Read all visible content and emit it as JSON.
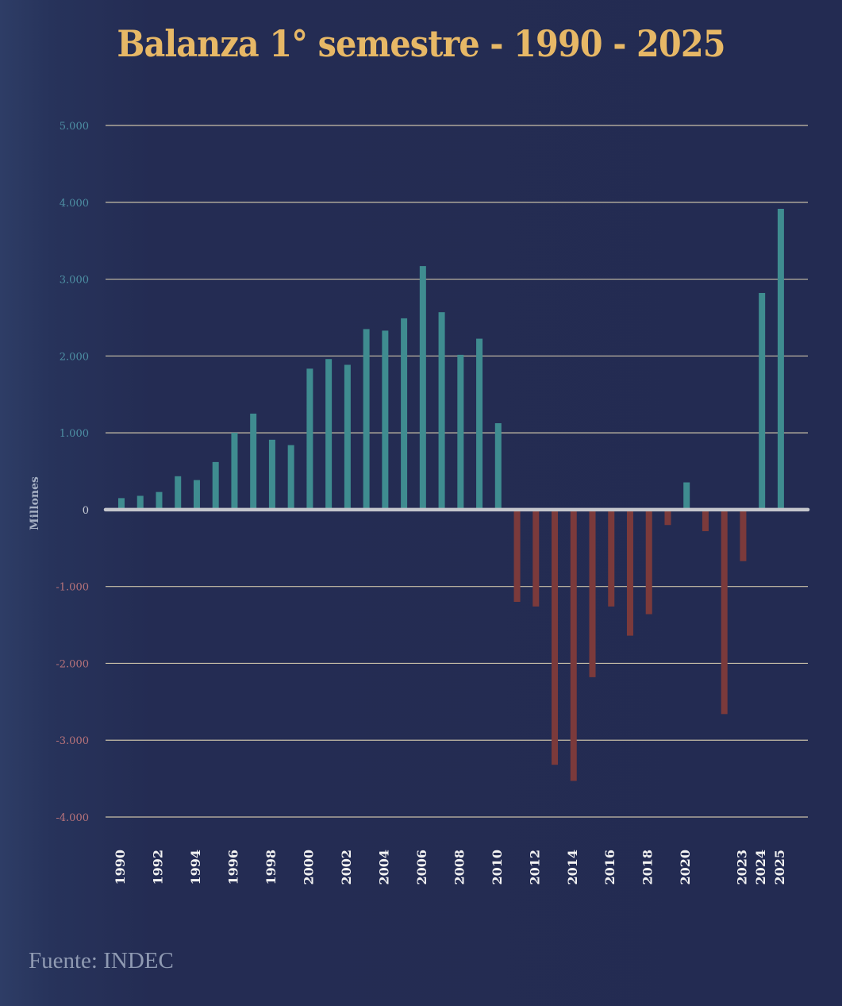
{
  "header": {
    "title": "Balanza 1° semestre - 1990 - 2025"
  },
  "footer": {
    "source": "Fuente: INDEC"
  },
  "colors": {
    "title": "#e7b866",
    "positive_bar": "#3f8c90",
    "negative_bar": "#7b3a3b",
    "positive_tick": "#4d8fa3",
    "negative_tick": "#b8737a",
    "zero_tick": "#c9cdd6",
    "gridline": "#c9c0a8",
    "zero_line": "#c4c6cc"
  },
  "chart_data": {
    "type": "bar",
    "title": "Balanza 1° semestre - 1990 - 2025",
    "xlabel": "",
    "ylabel": "Millones",
    "ylim": [
      -4000,
      5000
    ],
    "yticks": [
      5000,
      4000,
      3000,
      2000,
      1000,
      0,
      -1000,
      -2000,
      -3000,
      -4000
    ],
    "ytick_labels": [
      "5.000",
      "4.000",
      "3.000",
      "2.000",
      "1.000",
      "0",
      "-1.000",
      "-2.000",
      "-3.000",
      "-4.000"
    ],
    "grid": true,
    "legend": "none",
    "categories": [
      "1990",
      "1991",
      "1992",
      "1993",
      "1994",
      "1995",
      "1996",
      "1997",
      "1998",
      "1999",
      "2000",
      "2001",
      "2002",
      "2003",
      "2004",
      "2005",
      "2006",
      "2007",
      "2008",
      "2009",
      "2010",
      "2011",
      "2012",
      "2013",
      "2014",
      "2015",
      "2016",
      "2017",
      "2018",
      "2019",
      "2020",
      "2021",
      "2022",
      "2023",
      "2024",
      "2025"
    ],
    "values": [
      150,
      180,
      230,
      435,
      385,
      620,
      1000,
      1250,
      910,
      840,
      1835,
      1960,
      1885,
      2350,
      2330,
      2490,
      3170,
      2570,
      2015,
      2225,
      1125,
      -1200,
      -1260,
      -3320,
      -3530,
      -2180,
      -1260,
      -1640,
      -1360,
      -200,
      355,
      -280,
      -2660,
      -670,
      2820,
      3915
    ],
    "x_tick_labels": [
      "1990",
      "1992",
      "1994",
      "1996",
      "1998",
      "2000",
      "2002",
      "2004",
      "2006",
      "2008",
      "2010",
      "2012",
      "2014",
      "2016",
      "2018",
      "2020",
      "2023",
      "2024",
      "2025"
    ]
  }
}
